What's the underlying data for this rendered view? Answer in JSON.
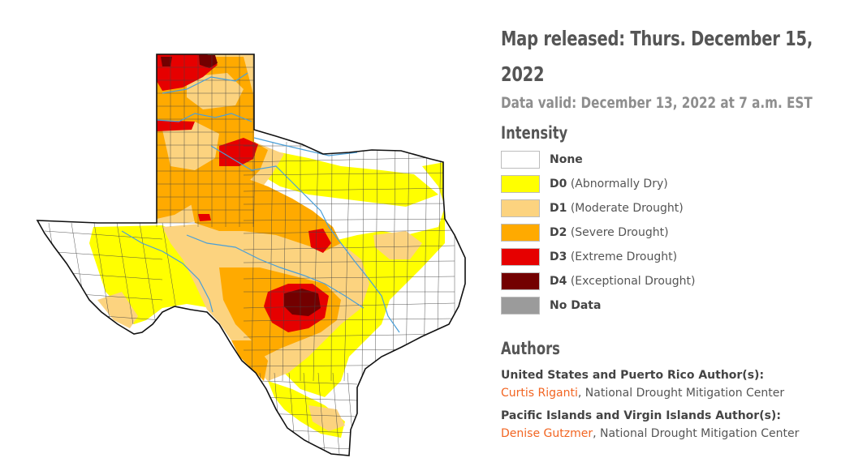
{
  "release": {
    "title": "Map released: Thurs. December 15, 2022",
    "valid": "Data valid: December 13, 2022 at 7 a.m. EST"
  },
  "legend": {
    "heading": "Intensity",
    "items": [
      {
        "code": "None",
        "desc": "",
        "color": "#ffffff"
      },
      {
        "code": "D0",
        "desc": "(Abnormally Dry)",
        "color": "#ffff00"
      },
      {
        "code": "D1",
        "desc": "(Moderate Drought)",
        "color": "#fcd37f"
      },
      {
        "code": "D2",
        "desc": "(Severe Drought)",
        "color": "#ffaa00"
      },
      {
        "code": "D3",
        "desc": "(Extreme Drought)",
        "color": "#e60000"
      },
      {
        "code": "D4",
        "desc": "(Exceptional Drought)",
        "color": "#730000"
      },
      {
        "code": "No Data",
        "desc": "",
        "color": "#9b9b9b"
      }
    ]
  },
  "authors": {
    "heading": "Authors",
    "groups": [
      {
        "label": "United States and Puerto Rico Author(s):",
        "name": "Curtis Riganti",
        "org": ", National Drought Mitigation Center"
      },
      {
        "label": "Pacific Islands and Virgin Islands Author(s):",
        "name": "Denise Gutzmer",
        "org": ", National Drought Mitigation Center"
      }
    ]
  },
  "map": {
    "region": "Texas",
    "colors": {
      "none": "#ffffff",
      "d0": "#ffff00",
      "d1": "#fcd37f",
      "d2": "#ffaa00",
      "d3": "#e60000",
      "d4": "#730000",
      "river": "#4a9fd8",
      "border": "#1a1a1a",
      "county": "#333333"
    }
  }
}
